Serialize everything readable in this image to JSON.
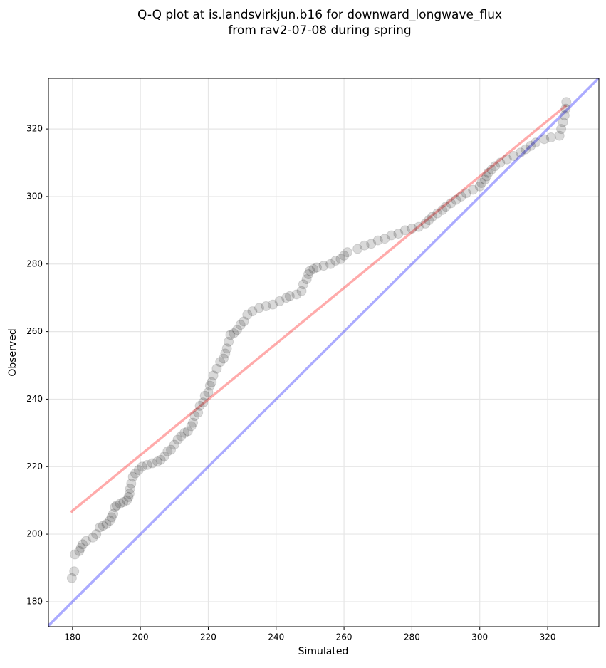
{
  "chart_data": {
    "type": "scatter",
    "title": [
      "Q-Q plot at is.landsvirkjun.b16 for downward_longwave_flux",
      "from rav2-07-08 during spring"
    ],
    "x_label": "Simulated",
    "y_label": "Observed",
    "xlim": [
      172.9,
      335.1
    ],
    "ylim": [
      172.6,
      335.0
    ],
    "xticks": [
      180,
      200,
      220,
      240,
      260,
      280,
      300,
      320
    ],
    "yticks": [
      180,
      200,
      220,
      240,
      260,
      280,
      300,
      320
    ],
    "grid": true,
    "series": [
      {
        "kind": "points",
        "color": "#000000",
        "alpha": 0.15,
        "x": [
          179.8,
          180.5,
          180.7,
          182,
          182.5,
          183,
          184,
          186,
          187,
          188,
          189,
          190,
          191,
          191.5,
          192,
          192.5,
          193,
          194,
          195,
          196,
          196.5,
          196.8,
          197,
          197.3,
          197.8,
          198.5,
          199.5,
          200.5,
          202,
          203.5,
          205,
          206,
          207,
          208,
          209,
          210,
          211,
          212,
          213,
          214,
          215,
          215.5,
          216,
          217,
          217.5,
          218.5,
          219,
          220,
          220.5,
          221,
          221.5,
          222.5,
          223.5,
          224.5,
          225,
          225.5,
          226,
          226.5,
          227.5,
          228.5,
          229.5,
          230.5,
          231.5,
          233,
          235,
          237,
          239,
          241,
          243,
          244,
          246,
          247.5,
          248,
          249,
          249.5,
          250,
          251,
          252,
          254,
          256,
          257.5,
          259,
          260,
          261,
          264,
          266,
          268,
          270,
          272,
          274,
          276,
          278,
          280,
          282,
          284,
          285,
          286,
          287.5,
          289,
          290,
          291.5,
          293,
          294.5,
          296,
          298,
          300,
          300.5,
          301.5,
          302,
          302.5,
          303.5,
          304.5,
          306,
          308,
          310,
          312,
          313.5,
          315,
          316.5,
          319,
          321,
          323.5,
          324,
          324.5,
          325,
          325.3,
          325.5
        ],
        "y": [
          187,
          189,
          194,
          195,
          196,
          197,
          198,
          199,
          200,
          202,
          202.5,
          203,
          204,
          205,
          206,
          208,
          208.5,
          209,
          209.5,
          210,
          211,
          212,
          213.5,
          215,
          217,
          218,
          219,
          220,
          220.5,
          221,
          221.5,
          222,
          223,
          224.5,
          225,
          226.5,
          228,
          229,
          230,
          230.5,
          232,
          233,
          235,
          236,
          238,
          239,
          241,
          242,
          244,
          245,
          247,
          249,
          251,
          252,
          253.5,
          255,
          257,
          259,
          259.5,
          260.5,
          262,
          263,
          265,
          266,
          267,
          267.5,
          268,
          269,
          270,
          270.5,
          271,
          272,
          274,
          275.5,
          277,
          278,
          278.5,
          279,
          279.5,
          280,
          281,
          281.5,
          282.5,
          283.5,
          284.5,
          285.5,
          286,
          287,
          287.5,
          288.5,
          289,
          290,
          290.5,
          291,
          292,
          293,
          294,
          295,
          296,
          297,
          298,
          299,
          300,
          301,
          302,
          303,
          304,
          305,
          306,
          307,
          308,
          309,
          310,
          311,
          312,
          313,
          314,
          315,
          316,
          317,
          317.5,
          318,
          320,
          322,
          324,
          326,
          328
        ]
      },
      {
        "kind": "line",
        "color": "#ff0000",
        "alpha": 0.33,
        "x": [
          179.5,
          325.5
        ],
        "y": [
          206.5,
          327
        ]
      },
      {
        "kind": "line",
        "color": "#0000ff",
        "alpha": 0.33,
        "x": [
          172.9,
          335.1
        ],
        "y": [
          172.9,
          335.1
        ]
      }
    ]
  }
}
